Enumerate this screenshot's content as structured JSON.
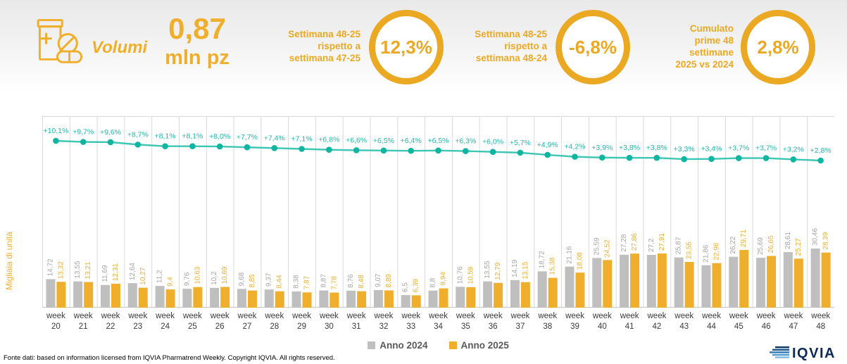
{
  "header": {
    "title": "Volumi",
    "big_value": "0,87",
    "big_unit": "mln pz",
    "kpis": [
      {
        "label": "Settimana 48-25\nrispetto a\nsettimana 47-25",
        "value": "12,3%"
      },
      {
        "label": "Settimana 48-25\nrispetto a\nsettimana 48-24",
        "value": "-6,8%"
      },
      {
        "label": "Cumulato\nprime 48\nsettimane\n2025 vs 2024",
        "value": "2,8%"
      }
    ]
  },
  "chart_data": {
    "type": "bar",
    "ylabel": "Migliaia di unità",
    "x_prefix": "week",
    "categories": [
      "20",
      "21",
      "22",
      "23",
      "24",
      "25",
      "26",
      "27",
      "28",
      "29",
      "30",
      "31",
      "32",
      "33",
      "34",
      "35",
      "36",
      "37",
      "38",
      "39",
      "40",
      "41",
      "42",
      "43",
      "44",
      "45",
      "46",
      "47",
      "48"
    ],
    "grid": "vertical",
    "grid_color": "#d9d9d9",
    "legend_position": "bottom",
    "series": [
      {
        "name": "Anno 2024",
        "color": "#bfbfbf",
        "label_color": "#a6a6a6",
        "values": [
          14.72,
          13.55,
          11.69,
          12.64,
          11.2,
          9.76,
          10.2,
          9.68,
          9.37,
          8.38,
          8.87,
          8.76,
          9.07,
          6.5,
          8.8,
          10.76,
          13.55,
          14.19,
          18.72,
          21.16,
          25.59,
          27.28,
          27.2,
          25.87,
          21.86,
          26.22,
          25.69,
          28.61,
          30.46
        ],
        "labels": [
          "14,72",
          "13,55",
          "11,69",
          "12,64",
          "11,2",
          "9,76",
          "10,2",
          "9,68",
          "9,37",
          "8,38",
          "8,87",
          "8,76",
          "9,07",
          "6,5",
          "8,8",
          "10,76",
          "13,55",
          "14,19",
          "18,72",
          "21,16",
          "25,59",
          "27,28",
          "27,2",
          "25,87",
          "21,86",
          "26,22",
          "25,69",
          "28,61",
          "30,46"
        ]
      },
      {
        "name": "Anno 2025",
        "color": "#efaf2c",
        "label_color": "#efaf2c",
        "values": [
          13.32,
          13.21,
          12.31,
          10.27,
          9.4,
          10.63,
          10.69,
          8.85,
          8.44,
          7.87,
          7.78,
          8.48,
          8.89,
          6.39,
          9.94,
          10.59,
          12.79,
          13.15,
          15.38,
          18.08,
          24.52,
          27.86,
          27.91,
          23.55,
          22.96,
          29.71,
          26.65,
          25.27,
          28.39
        ],
        "labels": [
          "13,32",
          "13,21",
          "12,31",
          "10,27",
          "9,4",
          "10,63",
          "10,69",
          "8,85",
          "8,44",
          "7,87",
          "7,78",
          "8,48",
          "8,89",
          "6,39",
          "9,94",
          "10,59",
          "12,79",
          "13,15",
          "15,38",
          "18,08",
          "24,52",
          "27,86",
          "27,91",
          "23,55",
          "22,96",
          "29,71",
          "26,65",
          "25,27",
          "28,39"
        ]
      }
    ],
    "line_series": {
      "name": "Crescita cumulata vs anno precedente",
      "line_color": "#3cc6b4",
      "point_color": "#0fb5a0",
      "label_color": "#1fb9a8",
      "values": [
        10.1,
        9.7,
        9.6,
        8.7,
        8.1,
        8.1,
        8.0,
        7.7,
        7.4,
        7.1,
        6.8,
        6.6,
        6.5,
        6.4,
        6.5,
        6.3,
        6.0,
        5.7,
        4.9,
        4.2,
        3.9,
        3.8,
        3.8,
        3.3,
        3.4,
        3.7,
        3.7,
        3.2,
        2.8
      ],
      "labels": [
        "+10,1%",
        "+9,7%",
        "+9,6%",
        "+8,7%",
        "+8,1%",
        "+8,1%",
        "+8,0%",
        "+7,7%",
        "+7,4%",
        "+7,1%",
        "+6,8%",
        "+6,6%",
        "+6,5%",
        "+6,4%",
        "+6,5%",
        "+6,3%",
        "+6,0%",
        "+5,7%",
        "+4,9%",
        "+4,2%",
        "+3,9%",
        "+3,8%",
        "+3,8%",
        "+3,3%",
        "+3,4%",
        "+3,7%",
        "+3,7%",
        "+3,2%",
        "+2,8%"
      ]
    }
  },
  "footer": {
    "source": "Fonte dati: based on information licensed from IQVIA Pharmatrend Weekly. Copyright IQVIA. All rights reserved.",
    "logo_text": "IQVIA"
  },
  "colors": {
    "accent_orange": "#efaf2c",
    "kpi_orange": "#eba923",
    "teal": "#1fb9a8",
    "gray_bar": "#bfbfbf",
    "logo_navy": "#0e2a57"
  }
}
